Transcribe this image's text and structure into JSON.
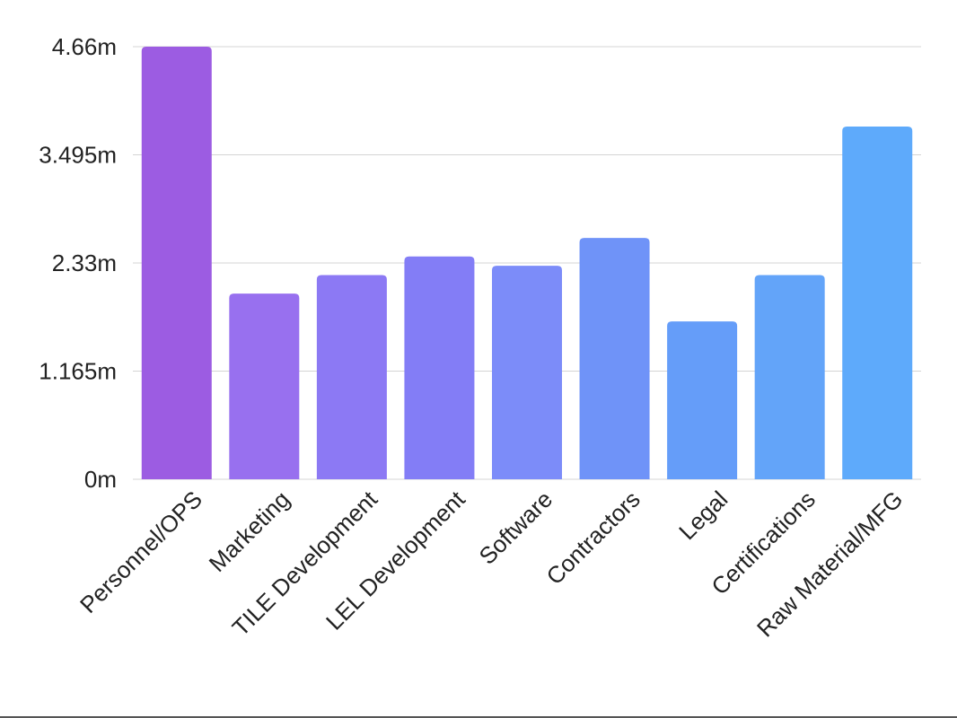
{
  "chart_data": {
    "type": "bar",
    "categories": [
      "Personnel/OPS",
      "Marketing",
      "TILE Development",
      "LEL Development",
      "Software",
      "Contractors",
      "Legal",
      "Certifications",
      "Raw Material/MFG"
    ],
    "values": [
      4.66,
      2.0,
      2.2,
      2.4,
      2.3,
      2.6,
      1.7,
      2.2,
      3.8
    ],
    "yticks": [
      "0m",
      "1.165m",
      "2.33m",
      "3.495m",
      "4.66m"
    ],
    "ytick_values": [
      0,
      1.165,
      2.33,
      3.495,
      4.66
    ],
    "ylim": [
      0,
      4.66
    ],
    "grid": true,
    "colors": [
      "#9c5ce2",
      "#9870ef",
      "#8c79f4",
      "#837df6",
      "#7c8cf9",
      "#6f93f8",
      "#659df9",
      "#63a4f9",
      "#5eaafb"
    ],
    "title": "",
    "xlabel": "",
    "ylabel": ""
  }
}
